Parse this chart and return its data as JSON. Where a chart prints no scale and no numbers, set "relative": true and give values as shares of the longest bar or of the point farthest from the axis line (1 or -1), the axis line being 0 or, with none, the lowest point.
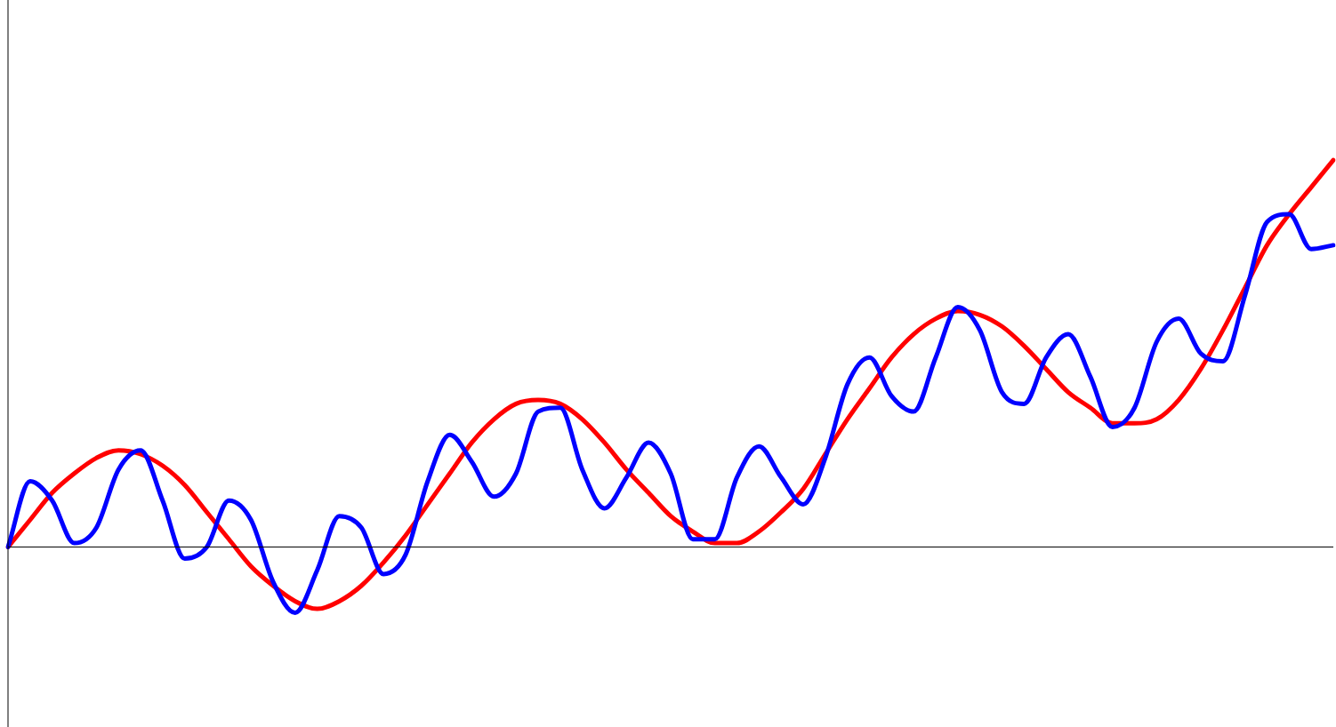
{
  "chart_data": {
    "type": "line",
    "relative": true,
    "grid": false,
    "legend": false,
    "marker": "none",
    "line_style": "solid",
    "categories": [
      null,
      null,
      null,
      null,
      null,
      null,
      null,
      null,
      null,
      null,
      null,
      null,
      null,
      null,
      null,
      null,
      null,
      null,
      null,
      null,
      null,
      null,
      null,
      null,
      null,
      null,
      null,
      null,
      null,
      null,
      null,
      null,
      null,
      null,
      null,
      null,
      null,
      null,
      null,
      null,
      null,
      null,
      null,
      null,
      null,
      null,
      null,
      null,
      null,
      null,
      null,
      null,
      null,
      null,
      null,
      null,
      null,
      null,
      null,
      null,
      null
    ],
    "series": [
      {
        "color": "#0000ff",
        "values": [
          0,
          0.17,
          0.12,
          0.01,
          0.05,
          0.2,
          0.25,
          0.12,
          -0.03,
          0,
          0.12,
          0.07,
          -0.09,
          -0.17,
          -0.06,
          0.08,
          0.05,
          -0.07,
          -0.02,
          0.17,
          0.29,
          0.22,
          0.13,
          0.19,
          0.35,
          0.36,
          0.2,
          0.1,
          0.18,
          0.27,
          0.19,
          0.02,
          0.02,
          0.18,
          0.26,
          0.18,
          0.11,
          0.23,
          0.42,
          0.49,
          0.39,
          0.35,
          0.49,
          0.62,
          0.56,
          0.4,
          0.37,
          0.49,
          0.55,
          0.44,
          0.31,
          0.36,
          0.53,
          0.59,
          0.5,
          0.48,
          0.65,
          0.84,
          0.86,
          0.77,
          0.78
        ]
      },
      {
        "color": "#ff0000",
        "values": [
          0,
          0.07,
          0.14,
          0.19,
          0.23,
          0.25,
          0.24,
          0.21,
          0.16,
          0.09,
          0.02,
          -0.05,
          -0.1,
          -0.14,
          -0.16,
          -0.14,
          -0.1,
          -0.04,
          0.03,
          0.11,
          0.19,
          0.27,
          0.33,
          0.37,
          0.38,
          0.37,
          0.33,
          0.27,
          0.2,
          0.14,
          0.08,
          0.04,
          0.01,
          0.01,
          0.04,
          0.09,
          0.15,
          0.24,
          0.33,
          0.41,
          0.49,
          0.55,
          0.59,
          0.61,
          0.6,
          0.57,
          0.52,
          0.46,
          0.4,
          0.36,
          0.32,
          0.32,
          0.33,
          0.38,
          0.46,
          0.56,
          0.67,
          0.78,
          0.86,
          0.93,
          1
        ]
      }
    ]
  }
}
